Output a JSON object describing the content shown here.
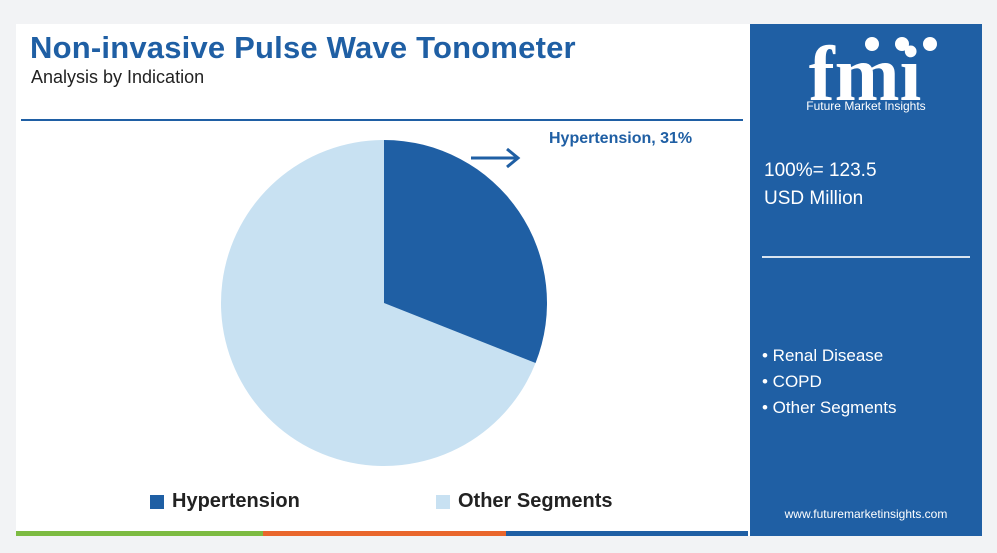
{
  "header": {
    "title": "Non-invasive Pulse Wave Tonometer",
    "subtitle": "Analysis by Indication"
  },
  "callout": {
    "label": "Hypertension, 31%"
  },
  "legend": [
    {
      "label": "Hypertension",
      "color": "#1f5fa4"
    },
    {
      "label": "Other Segments",
      "color": "#c8e1f2"
    }
  ],
  "chart_data": {
    "type": "pie",
    "title": "Non-invasive Pulse Wave Tonometer",
    "subtitle": "Analysis by Indication",
    "slices": [
      {
        "label": "Hypertension",
        "value": 31,
        "color": "#1f5fa4"
      },
      {
        "label": "Other Segments",
        "value": 69,
        "color": "#c8e1f2"
      }
    ],
    "annotation": "Hypertension, 31%",
    "legend_position": "bottom"
  },
  "sidebar": {
    "logo_text": "fmi",
    "logo_subtitle": "Future Market Insights",
    "total_line1": "100%= 123.5",
    "total_line2": "USD Million",
    "other_segments": [
      "• Renal Disease",
      "• COPD",
      "• Other Segments"
    ],
    "url": "www.futuremarketinsights.com",
    "background": "#1f5fa4"
  },
  "bottom_bar_colors": [
    "#7dbb42",
    "#e9662c",
    "#1f5fa4"
  ]
}
